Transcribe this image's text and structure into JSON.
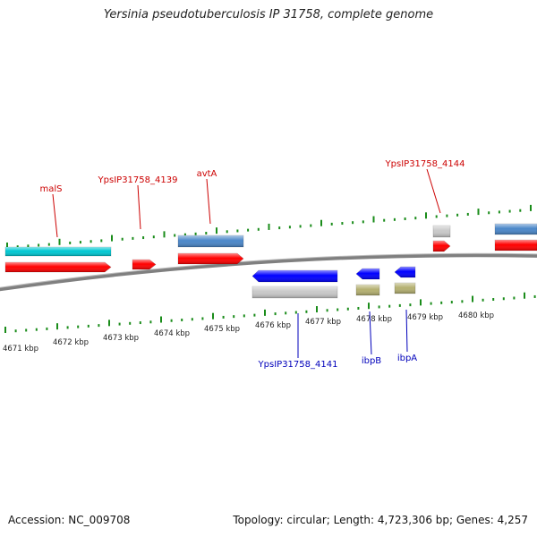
{
  "title": "Yersinia pseudotuberculosis IP 31758, complete genome",
  "footer": {
    "accession": "Accession: NC_009708",
    "summary": "Topology: circular; Length: 4,723,306 bp; Genes: 4,257"
  },
  "scale": {
    "unit": "kbp",
    "tick_labels": [
      "4671 kbp",
      "4672 kbp",
      "4673 kbp",
      "4674 kbp",
      "4675 kbp",
      "4676 kbp",
      "4677 kbp",
      "4678 kbp",
      "4679 kbp",
      "4680 kbp"
    ]
  },
  "gene_labels_top": [
    "malS",
    "YpsIP31758_4139",
    "avtA",
    "YpsIP31758_4144"
  ],
  "gene_labels_bottom": [
    "YpsIP31758_4141",
    "ibpB",
    "ibpA"
  ],
  "colors": {
    "cds": "#ff0000",
    "gene_forward": "#4a86c8",
    "gene_reverse": "#0000ff",
    "cyan": "#00c8d2",
    "gray": "#c8c8c8",
    "khaki": "#b4b070",
    "tick": "#1a8c1a",
    "label_top": "#cc0000",
    "label_bottom": "#0000bb",
    "backbone": "#808080"
  }
}
